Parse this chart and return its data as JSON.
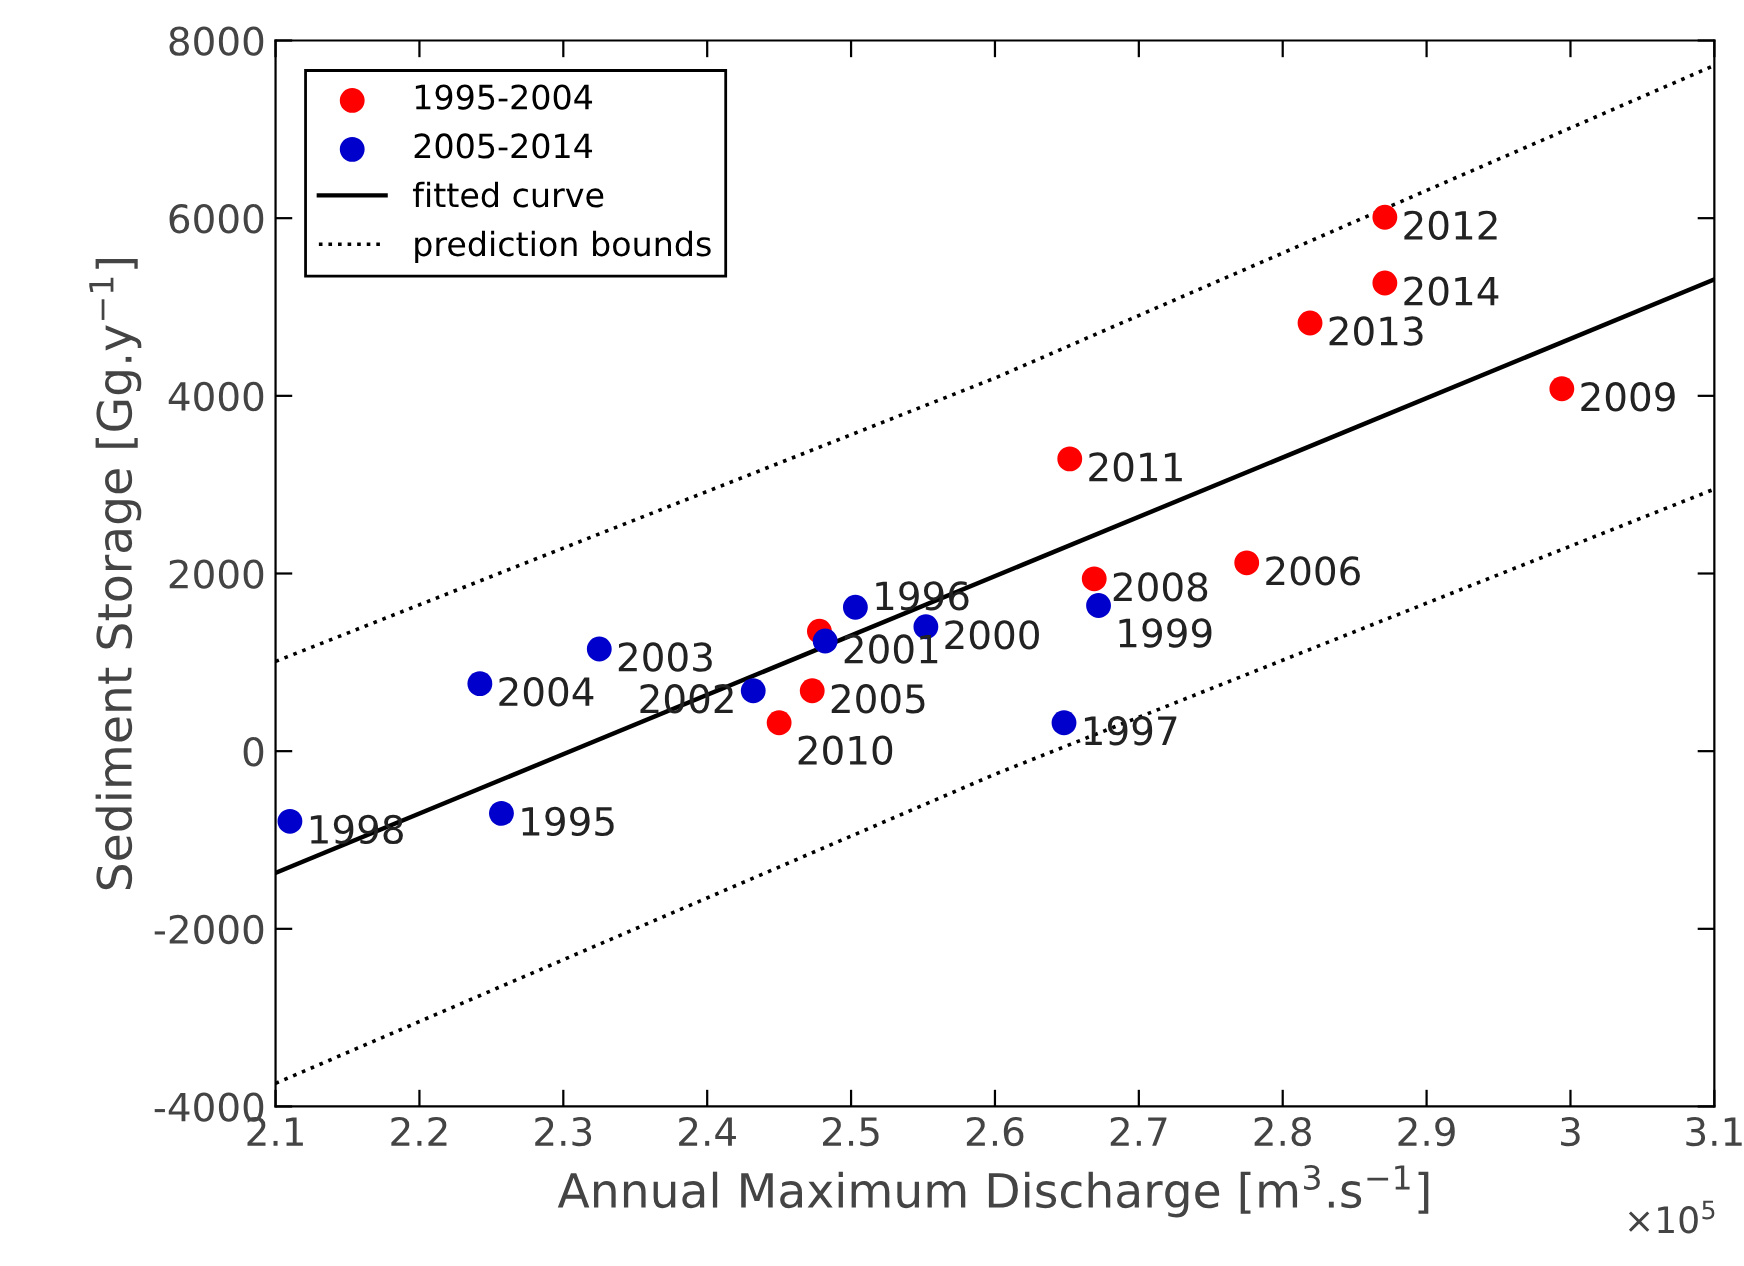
{
  "chart_data": {
    "type": "scatter",
    "xlabel": "Annual Maximum Discharge [m$^{3}$.s$^{−1}$]",
    "ylabel": "Sediment Storage [Gg.y$^{−1}$]",
    "xlim": [
      2.1,
      3.1
    ],
    "ylim": [
      -4000,
      8000
    ],
    "xticks": [
      2.1,
      2.2,
      2.3,
      2.4,
      2.5,
      2.6,
      2.7,
      2.8,
      2.9,
      3,
      3.1
    ],
    "yticks": [
      -4000,
      -2000,
      0,
      2000,
      4000,
      6000,
      8000
    ],
    "grid": false,
    "legend": "top left",
    "series": [
      {
        "name": "1995-2004",
        "marker": "circle",
        "color": "#ff0000",
        "x": [
          2.871,
          2.871,
          2.819,
          2.994,
          2.652,
          2.669,
          2.775,
          2.478,
          2.473,
          2.45
        ],
        "values": [
          6010,
          5270,
          4820,
          4080,
          3290,
          1940,
          2120,
          1350,
          680,
          320
        ]
      },
      {
        "name": "2005-2014",
        "marker": "circle",
        "color": "#0000cc",
        "x": [
          2.11,
          2.257,
          2.242,
          2.325,
          2.432,
          2.482,
          2.503,
          2.552,
          2.672,
          2.648
        ],
        "values": [
          -790,
          -700,
          760,
          1150,
          680,
          1240,
          1620,
          1400,
          1640,
          320
        ]
      },
      {
        "name": "fitted curve",
        "type": "line",
        "color": "#000000",
        "line_style": "solid",
        "x": [
          2.1,
          3.1
        ],
        "values": [
          -1370,
          5310
        ]
      },
      {
        "name": "prediction bounds",
        "type": "line",
        "color": "#000000",
        "line_style": "dotted",
        "x": [
          2.1,
          2.6,
          3.1
        ],
        "values": [
          1010,
          4200,
          7720
        ]
      },
      {
        "type": "line",
        "color": "#000000",
        "line_style": "dotted",
        "x": [
          2.1,
          2.6,
          3.1
        ],
        "values": [
          -3740,
          -260,
          2950
        ]
      }
    ],
    "annotations": [
      {
        "text": "2012",
        "x": 2.871,
        "y": 6010
      },
      {
        "text": "2014",
        "x": 2.871,
        "y": 5270
      },
      {
        "text": "2013",
        "x": 2.819,
        "y": 4820
      },
      {
        "text": "2009",
        "x": 2.994,
        "y": 4080
      },
      {
        "text": "2011",
        "x": 2.652,
        "y": 3290
      },
      {
        "text": "2008",
        "x": 2.669,
        "y": 1940
      },
      {
        "text": "2006",
        "x": 2.775,
        "y": 2120
      },
      {
        "text": "2005",
        "x": 2.473,
        "y": 680
      },
      {
        "text": "2010",
        "x": 2.45,
        "y": 320
      },
      {
        "text": "1998",
        "x": 2.11,
        "y": -790
      },
      {
        "text": "1995",
        "x": 2.257,
        "y": -700
      },
      {
        "text": "2004",
        "x": 2.242,
        "y": 760
      },
      {
        "text": "2003",
        "x": 2.325,
        "y": 1150
      },
      {
        "text": "2002",
        "x": 2.432,
        "y": 680
      },
      {
        "text": "2001",
        "x": 2.482,
        "y": 1240
      },
      {
        "text": "1996",
        "x": 2.503,
        "y": 1620
      },
      {
        "text": "2000",
        "x": 2.552,
        "y": 1400
      },
      {
        "text": "1999",
        "x": 2.672,
        "y": 1640
      },
      {
        "text": "1997",
        "x": 2.648,
        "y": 320
      },
      "×10$^{5}$"
    ]
  }
}
